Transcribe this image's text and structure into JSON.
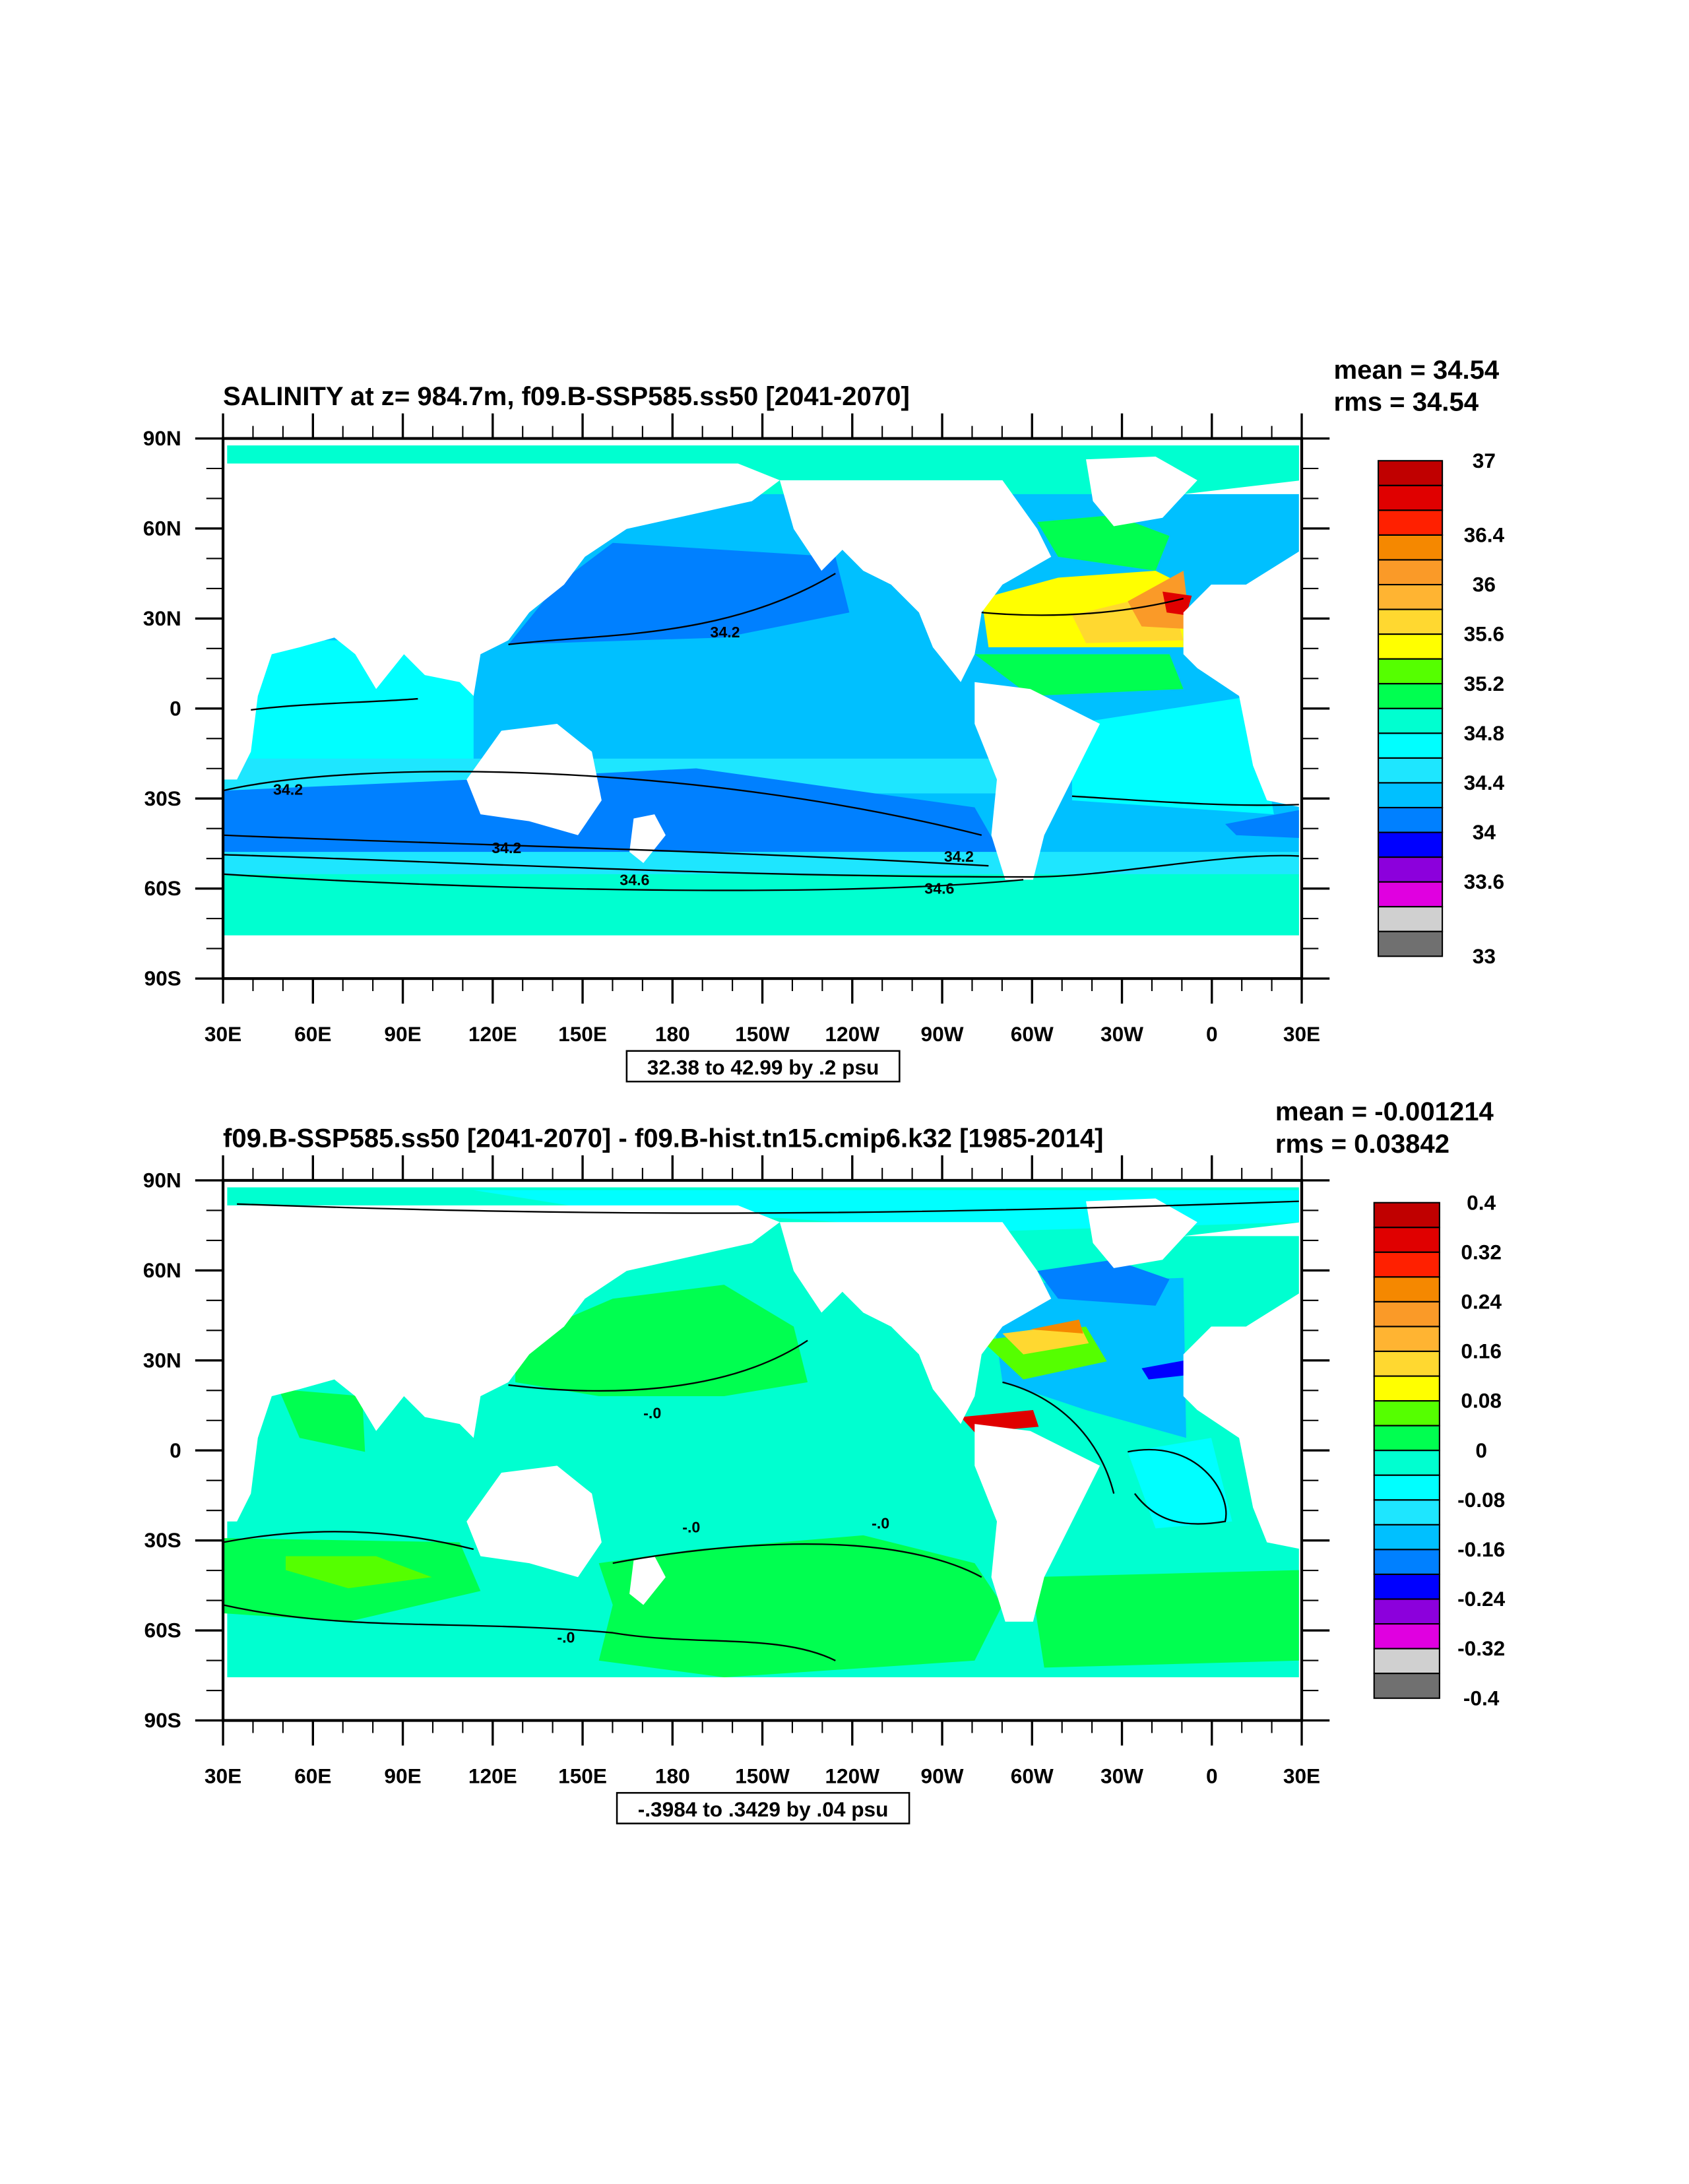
{
  "chart_data": [
    {
      "type": "heatmap",
      "title": "SALINITY at z= 984.7m, f09.B-SSP585.ss50 [2041-2070]",
      "stats": {
        "mean": "mean = 34.54",
        "rms": "rms = 34.54"
      },
      "info": "32.38 to 42.99 by .2 psu",
      "x_ticks": [
        "30E",
        "60E",
        "90E",
        "120E",
        "150E",
        "180",
        "150W",
        "120W",
        "90W",
        "60W",
        "30W",
        "0",
        "30E"
      ],
      "y_ticks": [
        "90N",
        "60N",
        "30N",
        "0",
        "30S",
        "60S",
        "90S"
      ],
      "xlim": [
        30,
        390
      ],
      "ylim": [
        -90,
        90
      ],
      "colorbar": {
        "range": [
          33,
          37
        ],
        "step": 0.2,
        "colors": [
          "#c00000",
          "#e00000",
          "#ff2000",
          "#f58800",
          "#fa9a28",
          "#ffb432",
          "#ffd830",
          "#ffff00",
          "#55ff00",
          "#00ff50",
          "#00ffd0",
          "#00ffff",
          "#1ee6ff",
          "#00c0ff",
          "#0080ff",
          "#0000ff",
          "#8c00dc",
          "#e000e0",
          "#d0d0d0",
          "#707070"
        ],
        "labels": [
          "37",
          "36.4",
          "36",
          "35.6",
          "35.2",
          "34.8",
          "34.4",
          "34",
          "33.6",
          "33"
        ],
        "label_values": [
          37,
          36.4,
          36,
          35.6,
          35.2,
          34.8,
          34.4,
          34,
          33.6,
          33
        ]
      },
      "contour_labels": [
        "34.2",
        "34.2",
        "34.2",
        "34.2",
        "34.6",
        "34.6"
      ]
    },
    {
      "type": "heatmap",
      "title": "f09.B-SSP585.ss50 [2041-2070] - f09.B-hist.tn15.cmip6.k32 [1985-2014]",
      "stats": {
        "mean": "mean = -0.001214",
        "rms": "rms = 0.03842"
      },
      "info": "-.3984 to .3429 by .04 psu",
      "x_ticks": [
        "30E",
        "60E",
        "90E",
        "120E",
        "150E",
        "180",
        "150W",
        "120W",
        "90W",
        "60W",
        "30W",
        "0",
        "30E"
      ],
      "y_ticks": [
        "90N",
        "60N",
        "30N",
        "0",
        "30S",
        "60S",
        "90S"
      ],
      "xlim": [
        30,
        390
      ],
      "ylim": [
        -90,
        90
      ],
      "colorbar": {
        "range": [
          -0.4,
          0.4
        ],
        "step": 0.04,
        "colors": [
          "#c00000",
          "#e00000",
          "#ff2000",
          "#f58800",
          "#fa9a28",
          "#ffb432",
          "#ffd830",
          "#ffff00",
          "#55ff00",
          "#00ff50",
          "#00ffd0",
          "#00ffff",
          "#1ee6ff",
          "#00c0ff",
          "#0080ff",
          "#0000ff",
          "#8c00dc",
          "#e000e0",
          "#d0d0d0",
          "#707070"
        ],
        "labels": [
          "0.4",
          "0.32",
          "0.24",
          "0.16",
          "0.08",
          "0",
          "-0.08",
          "-0.16",
          "-0.24",
          "-0.32",
          "-0.4"
        ],
        "label_values": [
          0.4,
          0.32,
          0.24,
          0.16,
          0.08,
          0,
          -0.08,
          -0.16,
          -0.24,
          -0.32,
          -0.4
        ]
      },
      "contour_labels": [
        "-.0",
        "-.0",
        "-.0",
        "-.0"
      ]
    }
  ]
}
